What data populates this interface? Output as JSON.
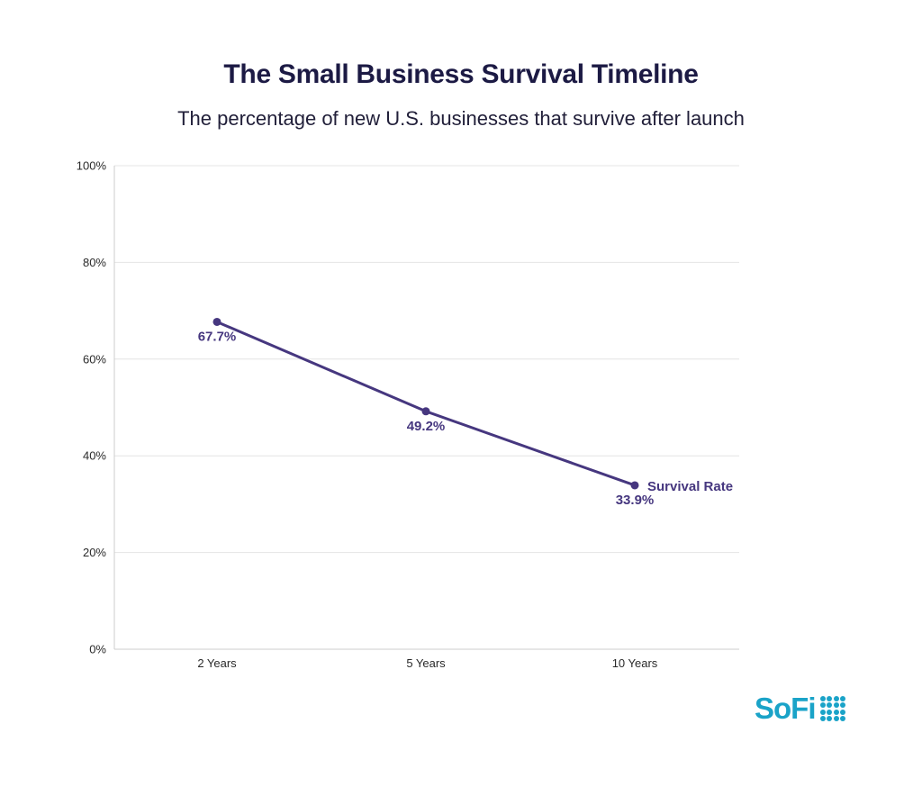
{
  "title": "The Small Business Survival Timeline",
  "subtitle": "The percentage of new U.S. businesses that survive after launch",
  "brand": {
    "name": "SoFi",
    "color": "#1aa3c8",
    "icon": "sofi-dots-icon"
  },
  "colors": {
    "line": "#46377f",
    "grid": "#e4e4e4",
    "axis": "#cccccc"
  },
  "chart_data": {
    "type": "line",
    "title": "The Small Business Survival Timeline",
    "subtitle": "The percentage of new U.S. businesses that survive after launch",
    "categories": [
      "2 Years",
      "5 Years",
      "10 Years"
    ],
    "series": [
      {
        "name": "Survival Rate",
        "values": [
          67.7,
          49.2,
          33.9
        ],
        "labels": [
          "67.7%",
          "49.2%",
          "33.9%"
        ]
      }
    ],
    "ylim": [
      0,
      100
    ],
    "yticks": [
      0,
      20,
      40,
      60,
      80,
      100
    ],
    "ytick_labels": [
      "0%",
      "20%",
      "40%",
      "60%",
      "80%",
      "100%"
    ],
    "xlabel": "",
    "ylabel": "",
    "grid": true,
    "legend": "end-of-line label"
  }
}
